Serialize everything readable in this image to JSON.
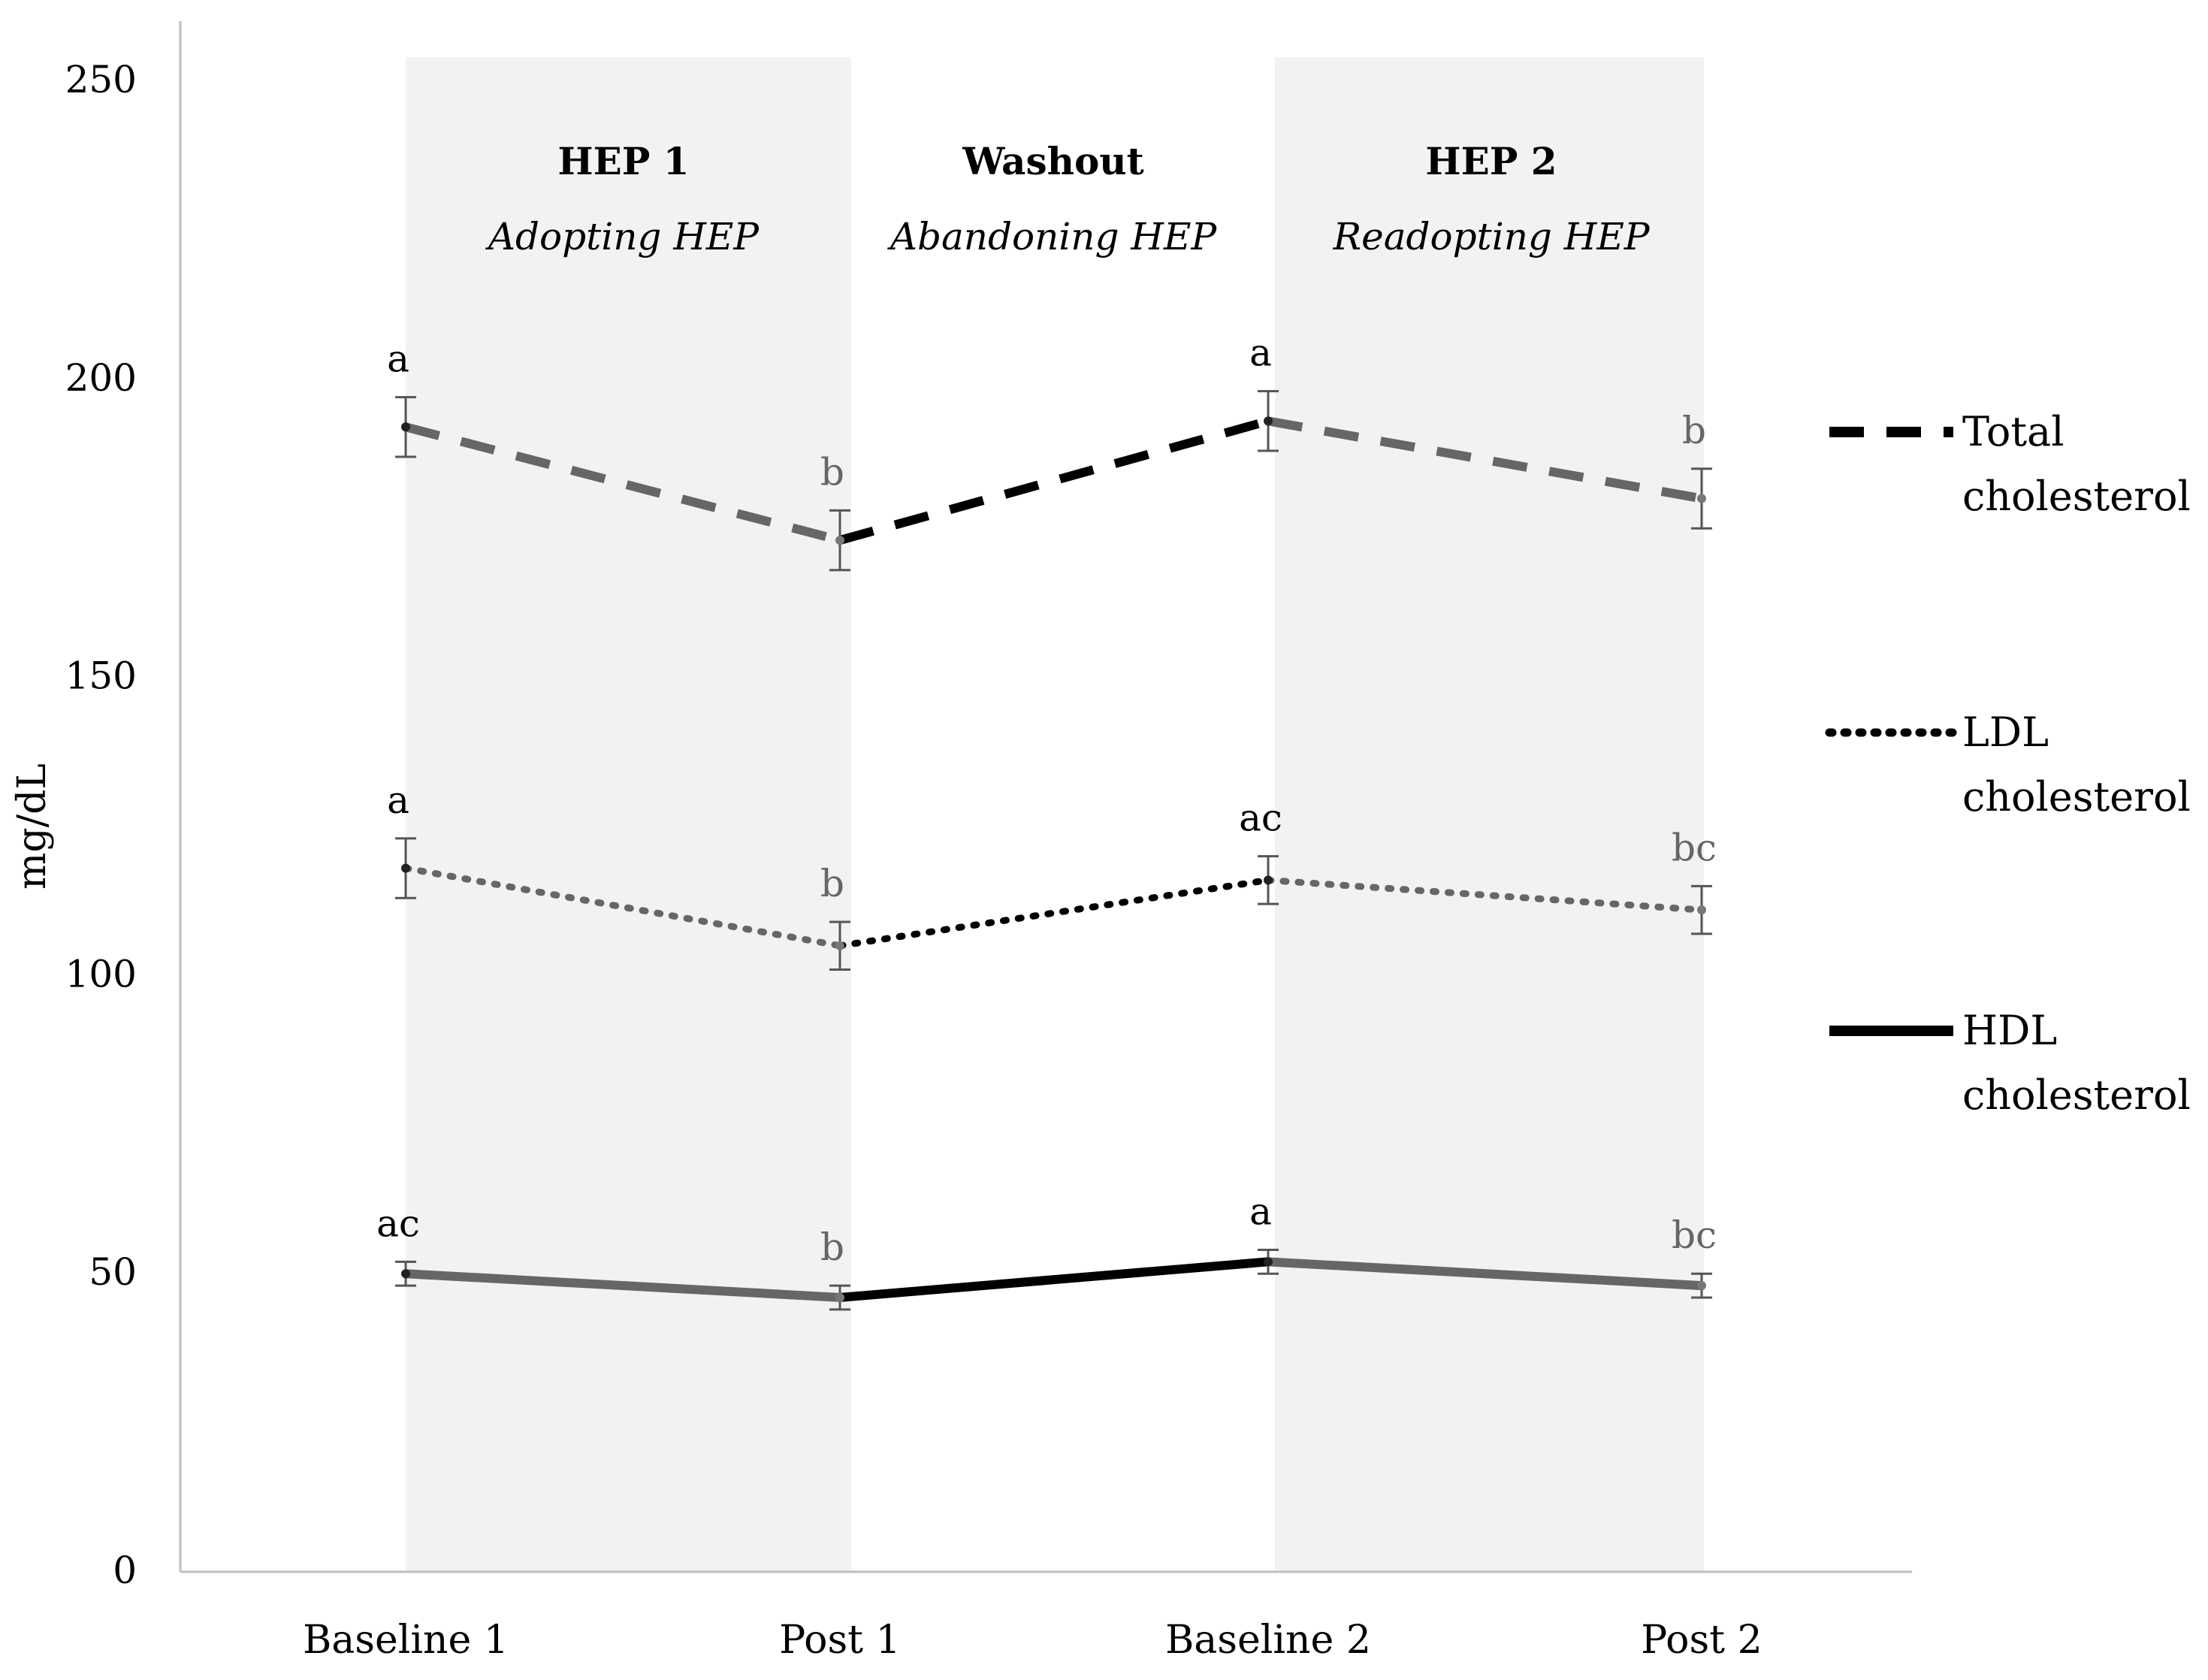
{
  "chart_data": {
    "type": "line",
    "ylabel": "mg/dL",
    "xlabel": "",
    "ylim": [
      0,
      250
    ],
    "yticks": [
      0,
      50,
      100,
      150,
      200,
      250
    ],
    "categories": [
      "Baseline 1",
      "Post 1",
      "Baseline 2",
      "Post 2"
    ],
    "phases": [
      {
        "title": "HEP 1",
        "subtitle": "Adopting HEP",
        "from": 0,
        "to": 1,
        "shaded": true
      },
      {
        "title": "Washout",
        "subtitle": "Abandoning HEP",
        "from": 1,
        "to": 2,
        "shaded": false
      },
      {
        "title": "HEP 2",
        "subtitle": "Readopting HEP",
        "from": 2,
        "to": 3,
        "shaded": true
      }
    ],
    "series": [
      {
        "name": "Total cholesterol",
        "legend_lines": [
          "Total",
          "cholesterol"
        ],
        "style": "dashed",
        "values": [
          192,
          173,
          193,
          180
        ],
        "errors": [
          5,
          5,
          5,
          5
        ],
        "letters": [
          "a",
          "b",
          "a",
          "b"
        ]
      },
      {
        "name": "LDL cholesterol",
        "legend_lines": [
          "LDL",
          "cholesterol"
        ],
        "style": "dotted",
        "values": [
          118,
          105,
          116,
          111
        ],
        "errors": [
          5,
          4,
          4,
          4
        ],
        "letters": [
          "a",
          "b",
          "ac",
          "bc"
        ]
      },
      {
        "name": "HDL cholesterol",
        "legend_lines": [
          "HDL",
          "cholesterol"
        ],
        "style": "solid",
        "values": [
          50,
          46,
          52,
          48
        ],
        "errors": [
          2,
          2,
          2,
          2
        ],
        "letters": [
          "ac",
          "b",
          "a",
          "bc"
        ]
      }
    ],
    "colors": {
      "within_phase": "#666666",
      "washout": "#000000",
      "shading": "#f2f2f2",
      "axis": "#bfbfbf"
    },
    "grid": false,
    "legend_position": "right"
  }
}
